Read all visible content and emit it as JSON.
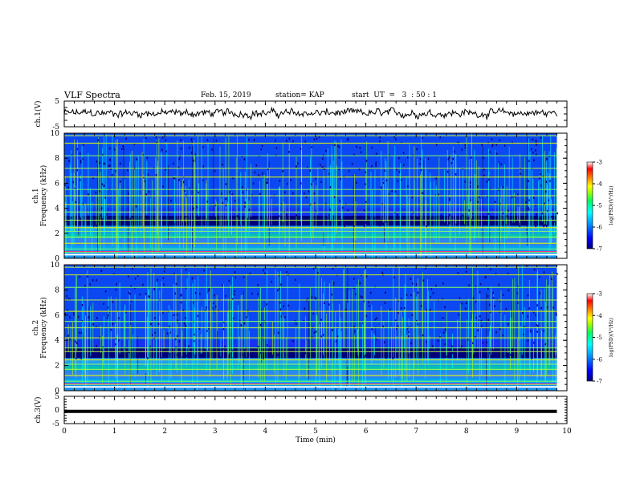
{
  "header": {
    "title": "VLF Spectra",
    "date": "Feb. 15, 2019",
    "station": "station= KAP",
    "start_ut": "start  UT  =   3  : 50 : 1"
  },
  "colors": {
    "waveform": "#000000",
    "background": "#000080",
    "colormap": [
      "#000080",
      "#0000ff",
      "#00a0ff",
      "#00ffff",
      "#00ff80",
      "#80ff00",
      "#ffff00",
      "#ff8000",
      "#ff0000",
      "#ffffff"
    ]
  },
  "chart_data": [
    {
      "type": "line",
      "name": "ch1-waveform",
      "ylabel": "ch.1(V)",
      "ylim": [
        -5,
        5
      ],
      "yticks": [
        "5",
        "-5"
      ],
      "xlim": [
        0,
        10
      ],
      "mean_level": 0.3,
      "peak_to_peak_approx": 3.5,
      "data_end_min": 9.8
    },
    {
      "type": "heatmap",
      "name": "ch1-spectrogram",
      "ylabel": "ch.1\nFrequency (kHz)",
      "ylim": [
        0,
        10
      ],
      "yticks": [
        "0",
        "2",
        "4",
        "6",
        "8",
        "10"
      ],
      "xlim": [
        0,
        10
      ],
      "data_end_min": 9.8,
      "colorbar": {
        "label": "log(PSD)(V²/Hz)",
        "range": [
          -7,
          -3
        ],
        "ticks": [
          "-3",
          "-4",
          "-5",
          "-6",
          "-7"
        ]
      },
      "horizontal_lines_khz": [
        0.5,
        0.75,
        1.2,
        1.7,
        2.15,
        2.45,
        3.05,
        3.7,
        4.3,
        5.0,
        5.5,
        6.5,
        7.2,
        8.2,
        9.2,
        9.8
      ]
    },
    {
      "type": "heatmap",
      "name": "ch2-spectrogram",
      "ylabel": "ch.2\nFrequency (kHz)",
      "ylim": [
        0,
        10
      ],
      "yticks": [
        "0",
        "2",
        "4",
        "6",
        "8",
        "10"
      ],
      "xlim": [
        0,
        10
      ],
      "data_end_min": 9.8,
      "colorbar": {
        "label": "log(PSD)(V²/Hz)",
        "range": [
          -7,
          -3
        ],
        "ticks": [
          "-3",
          "-4",
          "-5",
          "-6",
          "-7"
        ]
      },
      "horizontal_lines_khz": [
        0.5,
        0.75,
        1.2,
        1.7,
        2.1,
        2.45,
        3.1,
        3.4,
        4.2,
        5.0,
        5.5,
        6.3,
        7.2,
        8.2,
        9.2,
        9.8
      ]
    },
    {
      "type": "line",
      "name": "ch3-waveform",
      "ylabel": "ch.3(V)",
      "ylim": [
        -5,
        5
      ],
      "yticks": [
        "5",
        "0",
        "-5"
      ],
      "xlim": [
        0,
        10
      ],
      "constant_value": -0.5,
      "data_end_min": 9.8,
      "xlabel": "Time (min)",
      "xticks": [
        "0",
        "1",
        "2",
        "3",
        "4",
        "5",
        "6",
        "7",
        "8",
        "9",
        "10"
      ]
    }
  ]
}
